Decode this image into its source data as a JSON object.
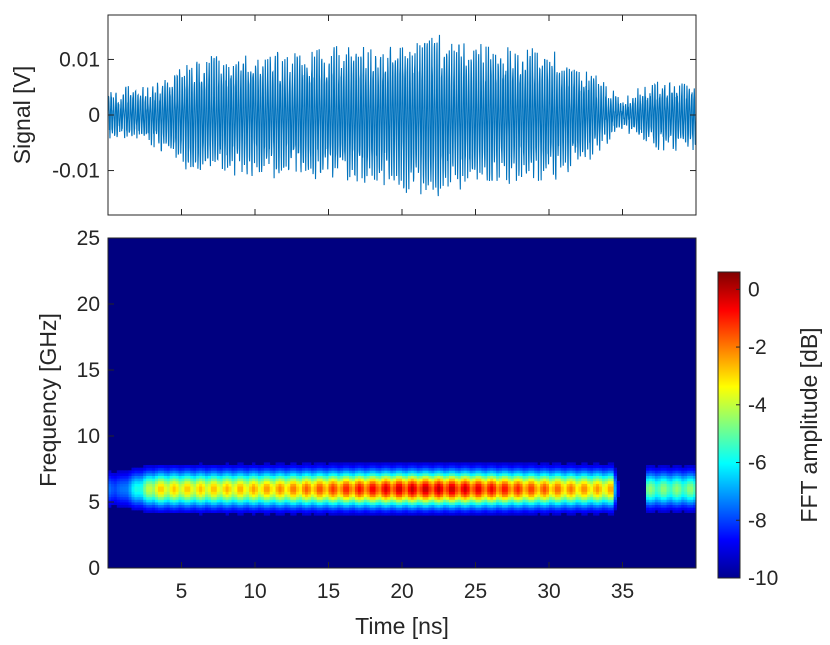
{
  "chart_data": [
    {
      "type": "line",
      "title": "",
      "xlabel": "",
      "ylabel": "Signal [V]",
      "xlim": [
        0,
        40
      ],
      "ylim": [
        -0.018,
        0.018
      ],
      "yticks": [
        -0.01,
        0,
        0.01
      ],
      "yticklabels": [
        "-0.01",
        "0",
        "0.01"
      ],
      "xticks": [
        5,
        10,
        15,
        20,
        25,
        30,
        35
      ],
      "grid": false,
      "color": "#0072BD",
      "series": [
        {
          "x": [
            0,
            3,
            6,
            10,
            15,
            20,
            22,
            25,
            30,
            33,
            35,
            37,
            40
          ],
          "y_envelope": [
            0.004,
            0.005,
            0.011,
            0.011,
            0.012,
            0.014,
            0.015,
            0.013,
            0.012,
            0.008,
            0.002,
            0.006,
            0.006
          ],
          "carrier_frequency_GHz": 6
        }
      ]
    },
    {
      "type": "heatmap",
      "title": "",
      "xlabel": "Time [ns]",
      "ylabel": "Frequency [GHz]",
      "xlim": [
        0,
        40
      ],
      "ylim": [
        0,
        25
      ],
      "xticks": [
        5,
        10,
        15,
        20,
        25,
        30,
        35
      ],
      "xticklabels": [
        "5",
        "10",
        "15",
        "20",
        "25",
        "30",
        "35"
      ],
      "yticks": [
        0,
        5,
        10,
        15,
        20,
        25
      ],
      "yticklabels": [
        "0",
        "5",
        "10",
        "15",
        "20",
        "25"
      ],
      "colormap": "jet",
      "colorbar": {
        "label": "FFT amplitude [dB]",
        "range": [
          -10,
          0.6
        ],
        "ticks": [
          0,
          -2,
          -4,
          -6,
          -8,
          -10
        ],
        "ticklabels": [
          "0",
          "-2",
          "-4",
          "-6",
          "-8",
          "-10"
        ]
      },
      "band_center_GHz": 6,
      "band_halfwidth_GHz": 1.4,
      "peak_time_ns": 22,
      "peak_amplitude_dB": 0,
      "background_dB": -10,
      "gap_ns": [
        34.8,
        36.5
      ]
    }
  ]
}
